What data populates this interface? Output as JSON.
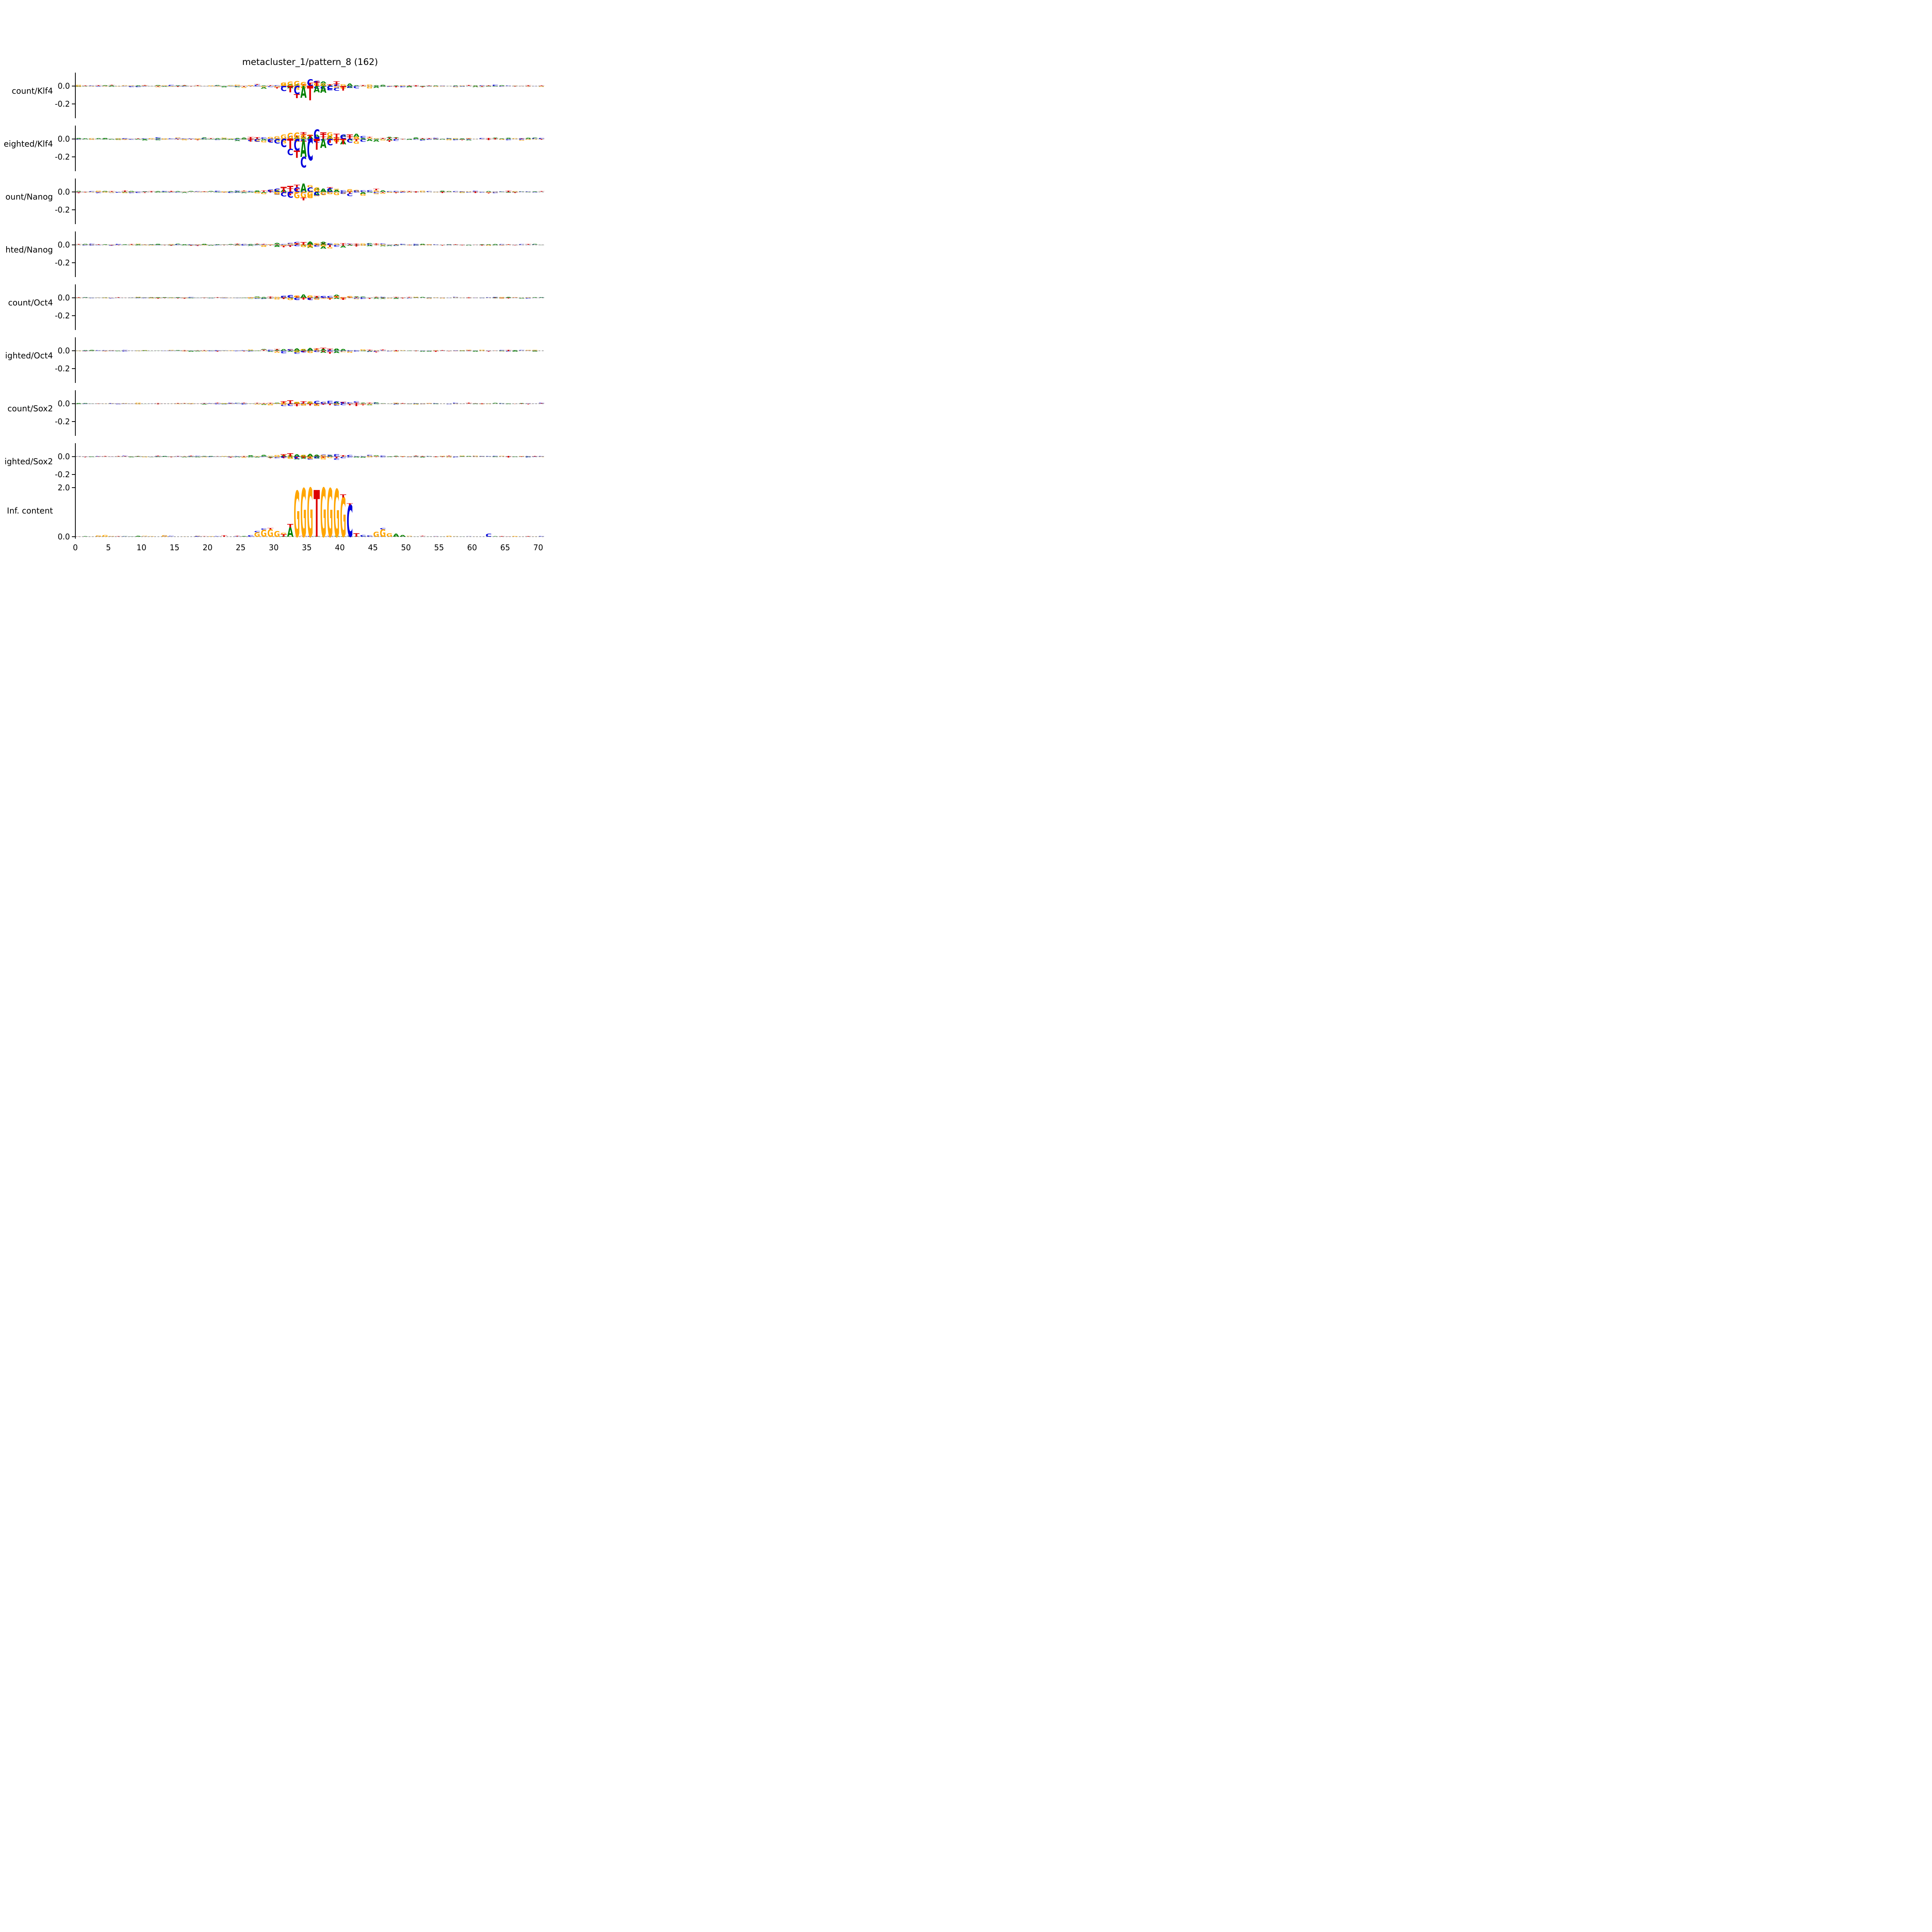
{
  "colors": {
    "A": "#008000",
    "C": "#0000dd",
    "G": "#ffa500",
    "T": "#dd0000",
    "axis": "#000000",
    "zero_line": "#8a8a8a"
  },
  "chart_data": {
    "type": "sequence-logo-grid",
    "title": "metacluster_1/pattern_8 (162)",
    "x": {
      "min": 0,
      "max": 71,
      "ticks": [
        0,
        5,
        10,
        15,
        20,
        25,
        30,
        35,
        40,
        45,
        50,
        55,
        60,
        65,
        70
      ]
    },
    "panels": [
      {
        "label": "count/Klf4",
        "y_ticks": [
          0.0,
          -0.2
        ],
        "ylim": [
          -0.36,
          0.15
        ],
        "noise": {
          "amp": 0.008,
          "seed": 11,
          "bump": 4,
          "sign": "both"
        },
        "letters": [
          [
            31,
            "G",
            0.035
          ],
          [
            32,
            "G",
            0.05
          ],
          [
            33,
            "G",
            0.055
          ],
          [
            34,
            "G",
            0.045
          ],
          [
            35,
            "C",
            0.075
          ],
          [
            36,
            "T",
            0.04
          ],
          [
            36,
            "C",
            0.02
          ],
          [
            37,
            "G",
            0.03
          ],
          [
            38,
            "T",
            0.02
          ],
          [
            39,
            "C",
            0.015
          ],
          [
            31,
            "C",
            -0.055
          ],
          [
            32,
            "T",
            -0.07
          ],
          [
            33,
            "C",
            -0.09
          ],
          [
            33,
            "T",
            -0.045
          ],
          [
            34,
            "A",
            -0.13
          ],
          [
            35,
            "T",
            -0.16
          ],
          [
            36,
            "A",
            -0.07
          ],
          [
            37,
            "A",
            -0.075
          ],
          [
            38,
            "C",
            -0.04
          ],
          [
            40,
            "T",
            -0.05
          ],
          [
            41,
            "C",
            -0.02
          ]
        ]
      },
      {
        "label": "eighted/Klf4",
        "y_ticks": [
          0.0,
          -0.2
        ],
        "ylim": [
          -0.36,
          0.15
        ],
        "noise": {
          "amp": 0.01,
          "seed": 22,
          "bump": 4,
          "sign": "both"
        },
        "letters": [
          [
            30,
            "G",
            0.03
          ],
          [
            31,
            "G",
            0.05
          ],
          [
            32,
            "G",
            0.065
          ],
          [
            33,
            "G",
            0.07
          ],
          [
            34,
            "G",
            0.05
          ],
          [
            34,
            "T",
            0.025
          ],
          [
            35,
            "T",
            0.04
          ],
          [
            36,
            "C",
            0.105
          ],
          [
            37,
            "T",
            0.055
          ],
          [
            38,
            "G",
            0.035
          ],
          [
            39,
            "T",
            0.02
          ],
          [
            40,
            "C",
            0.05
          ],
          [
            41,
            "T",
            0.03
          ],
          [
            42,
            "G",
            0.02
          ],
          [
            26,
            "T",
            -0.03
          ],
          [
            27,
            "C",
            -0.03
          ],
          [
            29,
            "C",
            -0.04
          ],
          [
            30,
            "C",
            -0.05
          ],
          [
            31,
            "C",
            -0.09
          ],
          [
            32,
            "T",
            -0.11
          ],
          [
            32,
            "C",
            -0.07
          ],
          [
            33,
            "C",
            -0.13
          ],
          [
            33,
            "T",
            -0.08
          ],
          [
            34,
            "A",
            -0.2
          ],
          [
            34,
            "C",
            -0.12
          ],
          [
            35,
            "C",
            -0.24
          ],
          [
            36,
            "T",
            -0.12
          ],
          [
            37,
            "A",
            -0.1
          ],
          [
            38,
            "C",
            -0.07
          ],
          [
            39,
            "T",
            -0.05
          ],
          [
            40,
            "T",
            -0.06
          ],
          [
            41,
            "C",
            -0.04
          ]
        ]
      },
      {
        "label": "ount/Nanog",
        "y_ticks": [
          0.0,
          -0.2
        ],
        "ylim": [
          -0.36,
          0.15
        ],
        "noise": {
          "amp": 0.008,
          "seed": 33,
          "bump": 4,
          "sign": "both"
        },
        "letters": [
          [
            29,
            "C",
            0.025
          ],
          [
            30,
            "C",
            0.035
          ],
          [
            31,
            "T",
            0.055
          ],
          [
            32,
            "T",
            0.065
          ],
          [
            33,
            "C",
            0.05
          ],
          [
            33,
            "T",
            0.03
          ],
          [
            34,
            "A",
            0.09
          ],
          [
            35,
            "C",
            0.05
          ],
          [
            35,
            "G",
            0.025
          ],
          [
            36,
            "G",
            0.05
          ],
          [
            37,
            "A",
            0.035
          ],
          [
            38,
            "C",
            0.04
          ],
          [
            39,
            "A",
            0.02
          ],
          [
            41,
            "G",
            0.03
          ],
          [
            42,
            "C",
            0.015
          ],
          [
            30,
            "G",
            -0.03
          ],
          [
            31,
            "C",
            -0.05
          ],
          [
            32,
            "C",
            -0.065
          ],
          [
            33,
            "G",
            -0.07
          ],
          [
            34,
            "G",
            -0.065
          ],
          [
            34,
            "T",
            -0.03
          ],
          [
            35,
            "G",
            -0.06
          ],
          [
            36,
            "C",
            -0.04
          ],
          [
            37,
            "G",
            -0.035
          ],
          [
            38,
            "G",
            -0.025
          ],
          [
            40,
            "C",
            -0.02
          ]
        ]
      },
      {
        "label": "hted/Nanog",
        "y_ticks": [
          0.0,
          -0.2
        ],
        "ylim": [
          -0.36,
          0.15
        ],
        "noise": {
          "amp": 0.007,
          "seed": 44,
          "bump": 2.5,
          "sign": "both"
        },
        "letters": [
          [
            33,
            "T",
            0.02
          ],
          [
            34,
            "T",
            0.03
          ],
          [
            35,
            "A",
            0.035
          ],
          [
            36,
            "G",
            0.02
          ],
          [
            37,
            "A",
            0.02
          ],
          [
            38,
            "C",
            0.015
          ],
          [
            33,
            "C",
            -0.015
          ],
          [
            34,
            "G",
            -0.025
          ],
          [
            35,
            "G",
            -0.03
          ],
          [
            36,
            "C",
            -0.02
          ],
          [
            37,
            "G",
            -0.015
          ]
        ]
      },
      {
        "label": "count/Oct4",
        "y_ticks": [
          0.0,
          -0.2
        ],
        "ylim": [
          -0.36,
          0.15
        ],
        "noise": {
          "amp": 0.006,
          "seed": 55,
          "bump": 2.5,
          "sign": "both"
        },
        "letters": [
          [
            31,
            "C",
            0.02
          ],
          [
            32,
            "C",
            0.03
          ],
          [
            33,
            "G",
            0.025
          ],
          [
            34,
            "A",
            0.035
          ],
          [
            35,
            "G",
            0.025
          ],
          [
            36,
            "T",
            0.02
          ],
          [
            37,
            "C",
            0.015
          ],
          [
            38,
            "C",
            0.02
          ],
          [
            39,
            "G",
            0.015
          ],
          [
            41,
            "G",
            0.02
          ],
          [
            31,
            "T",
            -0.015
          ],
          [
            32,
            "G",
            -0.025
          ],
          [
            33,
            "C",
            -0.025
          ],
          [
            34,
            "T",
            -0.02
          ],
          [
            35,
            "C",
            -0.025
          ],
          [
            36,
            "G",
            -0.02
          ],
          [
            38,
            "G",
            -0.012
          ],
          [
            40,
            "T",
            -0.015
          ]
        ]
      },
      {
        "label": "ighted/Oct4",
        "y_ticks": [
          0.0,
          -0.2
        ],
        "ylim": [
          -0.36,
          0.15
        ],
        "noise": {
          "amp": 0.006,
          "seed": 66,
          "bump": 3,
          "sign": "both"
        },
        "letters": [
          [
            32,
            "C",
            0.015
          ],
          [
            33,
            "A",
            0.025
          ],
          [
            34,
            "G",
            0.02
          ],
          [
            35,
            "A",
            0.03
          ],
          [
            36,
            "G",
            0.02
          ],
          [
            37,
            "A",
            0.018
          ],
          [
            38,
            "C",
            0.012
          ],
          [
            33,
            "G",
            -0.018
          ],
          [
            34,
            "C",
            -0.018
          ],
          [
            35,
            "G",
            -0.025
          ],
          [
            36,
            "C",
            -0.015
          ],
          [
            37,
            "T",
            -0.012
          ]
        ]
      },
      {
        "label": "count/Sox2",
        "y_ticks": [
          0.0,
          -0.2
        ],
        "ylim": [
          -0.36,
          0.15
        ],
        "noise": {
          "amp": 0.006,
          "seed": 77,
          "bump": 2.5,
          "sign": "both"
        },
        "letters": [
          [
            31,
            "T",
            0.025
          ],
          [
            32,
            "T",
            0.035
          ],
          [
            33,
            "G",
            0.02
          ],
          [
            34,
            "T",
            0.025
          ],
          [
            35,
            "G",
            0.025
          ],
          [
            36,
            "C",
            0.03
          ],
          [
            37,
            "C",
            0.02
          ],
          [
            39,
            "C",
            0.025
          ],
          [
            40,
            "C",
            0.015
          ],
          [
            31,
            "G",
            -0.015
          ],
          [
            32,
            "C",
            -0.025
          ],
          [
            33,
            "T",
            -0.025
          ],
          [
            34,
            "G",
            -0.02
          ],
          [
            35,
            "T",
            -0.02
          ],
          [
            36,
            "G",
            -0.025
          ],
          [
            37,
            "T",
            -0.012
          ],
          [
            39,
            "G",
            -0.015
          ]
        ]
      },
      {
        "label": "ighted/Sox2",
        "y_ticks": [
          0.0,
          -0.2
        ],
        "ylim": [
          -0.36,
          0.15
        ],
        "noise": {
          "amp": 0.006,
          "seed": 88,
          "bump": 3,
          "sign": "both"
        },
        "letters": [
          [
            31,
            "T",
            0.025
          ],
          [
            32,
            "T",
            0.035
          ],
          [
            33,
            "A",
            0.025
          ],
          [
            34,
            "G",
            0.02
          ],
          [
            35,
            "A",
            0.03
          ],
          [
            36,
            "A",
            0.022
          ],
          [
            37,
            "G",
            0.015
          ],
          [
            38,
            "C",
            0.012
          ],
          [
            31,
            "C",
            -0.015
          ],
          [
            32,
            "G",
            -0.025
          ],
          [
            33,
            "C",
            -0.025
          ],
          [
            34,
            "T",
            -0.018
          ],
          [
            35,
            "G",
            -0.025
          ],
          [
            36,
            "C",
            -0.018
          ],
          [
            37,
            "T",
            -0.012
          ]
        ]
      },
      {
        "label": "Inf. content",
        "y_ticks": [
          2.0,
          0.0
        ],
        "ylim": [
          -0.08,
          2.22
        ],
        "noise": {
          "amp": 0.018,
          "seed": 99,
          "bump": 0.8,
          "sign": "pos"
        },
        "letters": [
          [
            3,
            "G",
            0.05
          ],
          [
            4,
            "G",
            0.07
          ],
          [
            9,
            "A",
            0.04
          ],
          [
            13,
            "G",
            0.06
          ],
          [
            18,
            "C",
            0.03
          ],
          [
            22,
            "T",
            0.05
          ],
          [
            26,
            "C",
            0.06
          ],
          [
            27,
            "G",
            0.18
          ],
          [
            27,
            "C",
            0.05
          ],
          [
            28,
            "G",
            0.28
          ],
          [
            28,
            "C",
            0.05
          ],
          [
            29,
            "G",
            0.3
          ],
          [
            29,
            "T",
            0.05
          ],
          [
            30,
            "G",
            0.22
          ],
          [
            31,
            "T",
            0.1
          ],
          [
            31,
            "G",
            0.06
          ],
          [
            32,
            "A",
            0.38
          ],
          [
            32,
            "T",
            0.14
          ],
          [
            33,
            "G",
            1.85
          ],
          [
            34,
            "G",
            1.95
          ],
          [
            35,
            "G",
            1.97
          ],
          [
            36,
            "T",
            1.88
          ],
          [
            37,
            "G",
            1.97
          ],
          [
            38,
            "G",
            1.95
          ],
          [
            39,
            "G",
            1.92
          ],
          [
            40,
            "G",
            1.6
          ],
          [
            40,
            "T",
            0.12
          ],
          [
            41,
            "C",
            1.28
          ],
          [
            41,
            "T",
            0.08
          ],
          [
            42,
            "T",
            0.14
          ],
          [
            43,
            "C",
            0.07
          ],
          [
            44,
            "C",
            0.05
          ],
          [
            45,
            "G",
            0.2
          ],
          [
            46,
            "G",
            0.3
          ],
          [
            46,
            "C",
            0.05
          ],
          [
            47,
            "G",
            0.14
          ],
          [
            48,
            "A",
            0.12
          ],
          [
            49,
            "A",
            0.07
          ],
          [
            56,
            "G",
            0.04
          ],
          [
            62,
            "C",
            0.12
          ],
          [
            66,
            "G",
            0.03
          ]
        ]
      }
    ]
  }
}
